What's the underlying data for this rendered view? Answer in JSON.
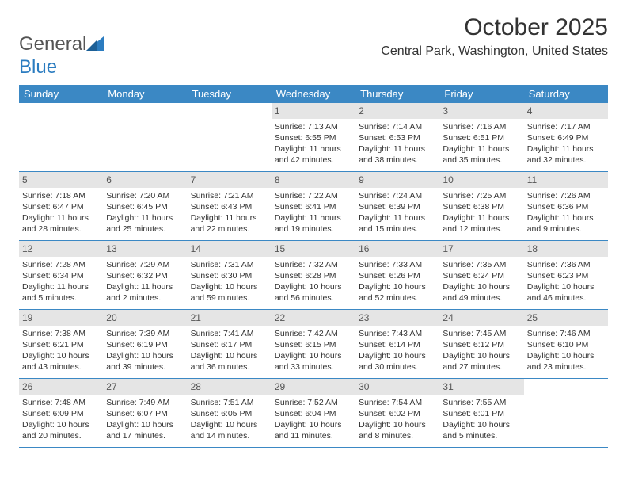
{
  "logo": {
    "word1": "General",
    "word2": "Blue"
  },
  "title": "October 2025",
  "location": "Central Park, Washington, United States",
  "day_names": [
    "Sunday",
    "Monday",
    "Tuesday",
    "Wednesday",
    "Thursday",
    "Friday",
    "Saturday"
  ],
  "colors": {
    "header_bg": "#3b88c4",
    "header_text": "#ffffff",
    "daynum_bg": "#e5e5e5",
    "border": "#3b88c4",
    "logo_blue": "#2b7cc0"
  },
  "weeks": [
    [
      {
        "n": "",
        "sr": "",
        "ss": "",
        "dl1": "",
        "dl2": ""
      },
      {
        "n": "",
        "sr": "",
        "ss": "",
        "dl1": "",
        "dl2": ""
      },
      {
        "n": "",
        "sr": "",
        "ss": "",
        "dl1": "",
        "dl2": ""
      },
      {
        "n": "1",
        "sr": "Sunrise: 7:13 AM",
        "ss": "Sunset: 6:55 PM",
        "dl1": "Daylight: 11 hours",
        "dl2": "and 42 minutes."
      },
      {
        "n": "2",
        "sr": "Sunrise: 7:14 AM",
        "ss": "Sunset: 6:53 PM",
        "dl1": "Daylight: 11 hours",
        "dl2": "and 38 minutes."
      },
      {
        "n": "3",
        "sr": "Sunrise: 7:16 AM",
        "ss": "Sunset: 6:51 PM",
        "dl1": "Daylight: 11 hours",
        "dl2": "and 35 minutes."
      },
      {
        "n": "4",
        "sr": "Sunrise: 7:17 AM",
        "ss": "Sunset: 6:49 PM",
        "dl1": "Daylight: 11 hours",
        "dl2": "and 32 minutes."
      }
    ],
    [
      {
        "n": "5",
        "sr": "Sunrise: 7:18 AM",
        "ss": "Sunset: 6:47 PM",
        "dl1": "Daylight: 11 hours",
        "dl2": "and 28 minutes."
      },
      {
        "n": "6",
        "sr": "Sunrise: 7:20 AM",
        "ss": "Sunset: 6:45 PM",
        "dl1": "Daylight: 11 hours",
        "dl2": "and 25 minutes."
      },
      {
        "n": "7",
        "sr": "Sunrise: 7:21 AM",
        "ss": "Sunset: 6:43 PM",
        "dl1": "Daylight: 11 hours",
        "dl2": "and 22 minutes."
      },
      {
        "n": "8",
        "sr": "Sunrise: 7:22 AM",
        "ss": "Sunset: 6:41 PM",
        "dl1": "Daylight: 11 hours",
        "dl2": "and 19 minutes."
      },
      {
        "n": "9",
        "sr": "Sunrise: 7:24 AM",
        "ss": "Sunset: 6:39 PM",
        "dl1": "Daylight: 11 hours",
        "dl2": "and 15 minutes."
      },
      {
        "n": "10",
        "sr": "Sunrise: 7:25 AM",
        "ss": "Sunset: 6:38 PM",
        "dl1": "Daylight: 11 hours",
        "dl2": "and 12 minutes."
      },
      {
        "n": "11",
        "sr": "Sunrise: 7:26 AM",
        "ss": "Sunset: 6:36 PM",
        "dl1": "Daylight: 11 hours",
        "dl2": "and 9 minutes."
      }
    ],
    [
      {
        "n": "12",
        "sr": "Sunrise: 7:28 AM",
        "ss": "Sunset: 6:34 PM",
        "dl1": "Daylight: 11 hours",
        "dl2": "and 5 minutes."
      },
      {
        "n": "13",
        "sr": "Sunrise: 7:29 AM",
        "ss": "Sunset: 6:32 PM",
        "dl1": "Daylight: 11 hours",
        "dl2": "and 2 minutes."
      },
      {
        "n": "14",
        "sr": "Sunrise: 7:31 AM",
        "ss": "Sunset: 6:30 PM",
        "dl1": "Daylight: 10 hours",
        "dl2": "and 59 minutes."
      },
      {
        "n": "15",
        "sr": "Sunrise: 7:32 AM",
        "ss": "Sunset: 6:28 PM",
        "dl1": "Daylight: 10 hours",
        "dl2": "and 56 minutes."
      },
      {
        "n": "16",
        "sr": "Sunrise: 7:33 AM",
        "ss": "Sunset: 6:26 PM",
        "dl1": "Daylight: 10 hours",
        "dl2": "and 52 minutes."
      },
      {
        "n": "17",
        "sr": "Sunrise: 7:35 AM",
        "ss": "Sunset: 6:24 PM",
        "dl1": "Daylight: 10 hours",
        "dl2": "and 49 minutes."
      },
      {
        "n": "18",
        "sr": "Sunrise: 7:36 AM",
        "ss": "Sunset: 6:23 PM",
        "dl1": "Daylight: 10 hours",
        "dl2": "and 46 minutes."
      }
    ],
    [
      {
        "n": "19",
        "sr": "Sunrise: 7:38 AM",
        "ss": "Sunset: 6:21 PM",
        "dl1": "Daylight: 10 hours",
        "dl2": "and 43 minutes."
      },
      {
        "n": "20",
        "sr": "Sunrise: 7:39 AM",
        "ss": "Sunset: 6:19 PM",
        "dl1": "Daylight: 10 hours",
        "dl2": "and 39 minutes."
      },
      {
        "n": "21",
        "sr": "Sunrise: 7:41 AM",
        "ss": "Sunset: 6:17 PM",
        "dl1": "Daylight: 10 hours",
        "dl2": "and 36 minutes."
      },
      {
        "n": "22",
        "sr": "Sunrise: 7:42 AM",
        "ss": "Sunset: 6:15 PM",
        "dl1": "Daylight: 10 hours",
        "dl2": "and 33 minutes."
      },
      {
        "n": "23",
        "sr": "Sunrise: 7:43 AM",
        "ss": "Sunset: 6:14 PM",
        "dl1": "Daylight: 10 hours",
        "dl2": "and 30 minutes."
      },
      {
        "n": "24",
        "sr": "Sunrise: 7:45 AM",
        "ss": "Sunset: 6:12 PM",
        "dl1": "Daylight: 10 hours",
        "dl2": "and 27 minutes."
      },
      {
        "n": "25",
        "sr": "Sunrise: 7:46 AM",
        "ss": "Sunset: 6:10 PM",
        "dl1": "Daylight: 10 hours",
        "dl2": "and 23 minutes."
      }
    ],
    [
      {
        "n": "26",
        "sr": "Sunrise: 7:48 AM",
        "ss": "Sunset: 6:09 PM",
        "dl1": "Daylight: 10 hours",
        "dl2": "and 20 minutes."
      },
      {
        "n": "27",
        "sr": "Sunrise: 7:49 AM",
        "ss": "Sunset: 6:07 PM",
        "dl1": "Daylight: 10 hours",
        "dl2": "and 17 minutes."
      },
      {
        "n": "28",
        "sr": "Sunrise: 7:51 AM",
        "ss": "Sunset: 6:05 PM",
        "dl1": "Daylight: 10 hours",
        "dl2": "and 14 minutes."
      },
      {
        "n": "29",
        "sr": "Sunrise: 7:52 AM",
        "ss": "Sunset: 6:04 PM",
        "dl1": "Daylight: 10 hours",
        "dl2": "and 11 minutes."
      },
      {
        "n": "30",
        "sr": "Sunrise: 7:54 AM",
        "ss": "Sunset: 6:02 PM",
        "dl1": "Daylight: 10 hours",
        "dl2": "and 8 minutes."
      },
      {
        "n": "31",
        "sr": "Sunrise: 7:55 AM",
        "ss": "Sunset: 6:01 PM",
        "dl1": "Daylight: 10 hours",
        "dl2": "and 5 minutes."
      },
      {
        "n": "",
        "sr": "",
        "ss": "",
        "dl1": "",
        "dl2": ""
      }
    ]
  ]
}
